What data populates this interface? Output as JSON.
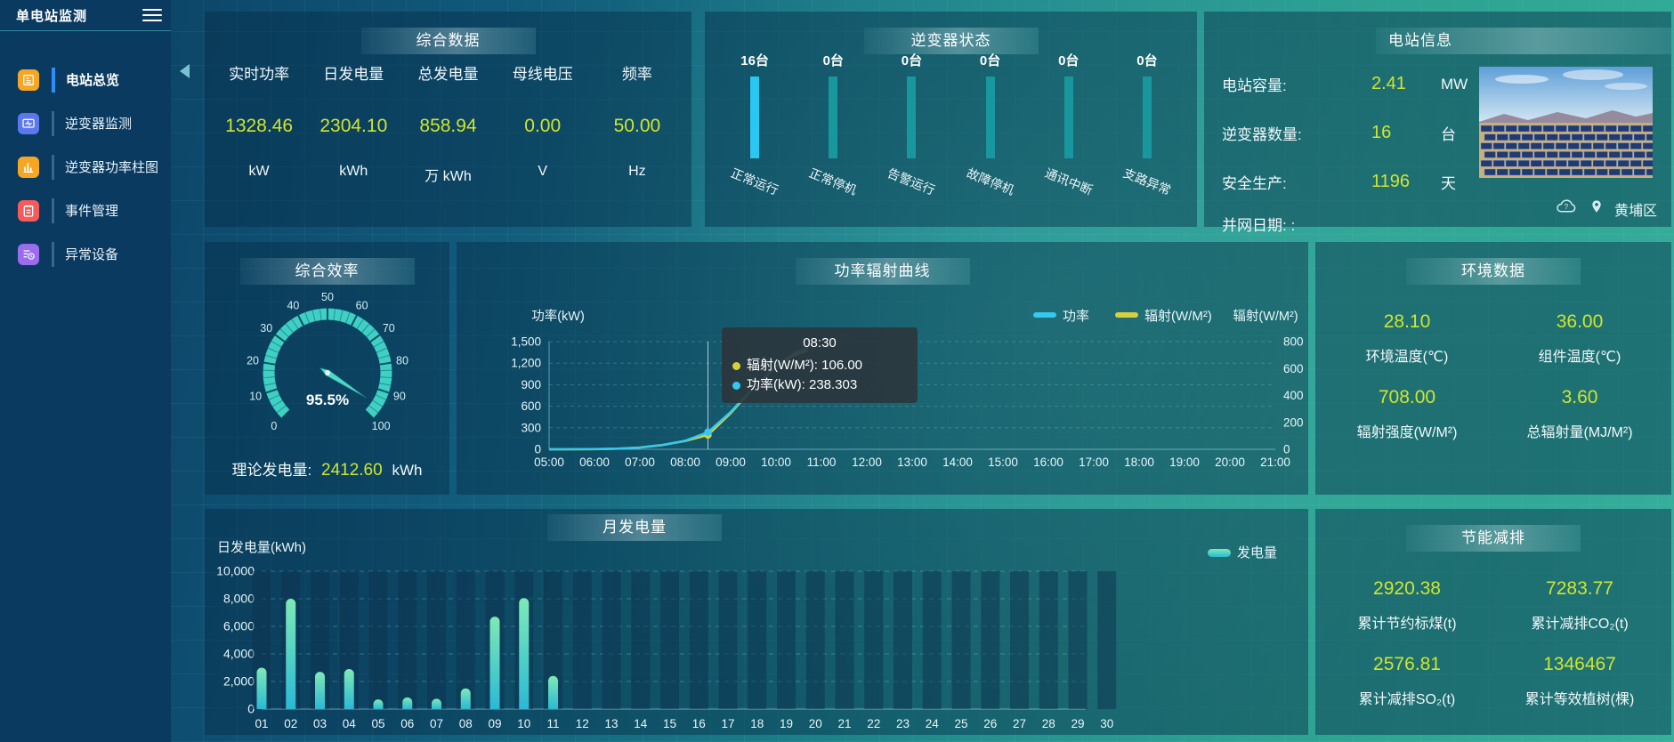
{
  "colors": {
    "accent_yellow": "#cfe52f",
    "bar_highlight": "#29c7f2",
    "bar_normal": "#18989c",
    "line_power": "#35c8f0",
    "line_radiation": "#d8cf3a",
    "month_bar_top": "#7fe9b6",
    "month_bar_bottom": "#2ab9d4",
    "menu_icon_colors": [
      "#f5a623",
      "#5b78ee",
      "#f5a623",
      "#f55b5b",
      "#9a6cf0"
    ]
  },
  "sidebar": {
    "title": "单电站监测",
    "items": [
      {
        "label": "电站总览",
        "icon": "station-overview-icon",
        "active": true
      },
      {
        "label": "逆变器监测",
        "icon": "inverter-monitor-icon",
        "active": false
      },
      {
        "label": "逆变器功率柱图",
        "icon": "inverter-bar-icon",
        "active": false
      },
      {
        "label": "事件管理",
        "icon": "event-manage-icon",
        "active": false
      },
      {
        "label": "异常设备",
        "icon": "abnormal-device-icon",
        "active": false
      }
    ]
  },
  "overview": {
    "title": "综合数据",
    "metrics": [
      {
        "label": "实时功率",
        "value": "1328.46",
        "unit": "kW"
      },
      {
        "label": "日发电量",
        "value": "2304.10",
        "unit": "kWh"
      },
      {
        "label": "总发电量",
        "value": "858.94",
        "unit": "万 kWh"
      },
      {
        "label": "母线电压",
        "value": "0.00",
        "unit": "V"
      },
      {
        "label": "频率",
        "value": "50.00",
        "unit": "Hz"
      }
    ]
  },
  "inverter_status": {
    "title": "逆变器状态",
    "bars": [
      {
        "count": "16台",
        "label": "正常运行",
        "highlight": true
      },
      {
        "count": "0台",
        "label": "正常停机",
        "highlight": false
      },
      {
        "count": "0台",
        "label": "告警运行",
        "highlight": false
      },
      {
        "count": "0台",
        "label": "故障停机",
        "highlight": false
      },
      {
        "count": "0台",
        "label": "通讯中断",
        "highlight": false
      },
      {
        "count": "0台",
        "label": "支路异常",
        "highlight": false
      }
    ]
  },
  "station_info": {
    "title": "电站信息",
    "rows": [
      {
        "label": "电站容量:",
        "value": "2.41",
        "unit": "MW"
      },
      {
        "label": "逆变器数量:",
        "value": "16",
        "unit": "台"
      },
      {
        "label": "安全生产:",
        "value": "1196",
        "unit": "天"
      },
      {
        "label": "并网日期: :",
        "value": "",
        "unit": ""
      }
    ],
    "location": "黄埔区"
  },
  "efficiency": {
    "title": "综合效率",
    "gauge": {
      "percent": 95.5,
      "display": "95.5%",
      "min": 0,
      "max": 100,
      "tick_labels": [
        "0",
        "10",
        "20",
        "30",
        "40",
        "50",
        "60",
        "70",
        "80",
        "90",
        "100"
      ]
    },
    "theory_label": "理论发电量:",
    "theory_value": "2412.60",
    "theory_unit": "kWh"
  },
  "power_curve": {
    "title": "功率辐射曲线",
    "tooltip": {
      "time": "08:30",
      "rows": [
        {
          "name": "辐射(W/M²)",
          "value": "106.00",
          "color": "#d8cf3a"
        },
        {
          "name": "功率(kW)",
          "value": "238.303",
          "color": "#35c8f0"
        }
      ]
    },
    "chart_data": {
      "type": "line",
      "x_labels": [
        "05:00",
        "06:00",
        "07:00",
        "08:00",
        "09:00",
        "10:00",
        "11:00",
        "12:00",
        "13:00",
        "14:00",
        "15:00",
        "16:00",
        "17:00",
        "18:00",
        "19:00",
        "20:00",
        "21:00"
      ],
      "x_range": [
        5,
        21
      ],
      "left_axis": {
        "label": "功率(kW)",
        "tick_labels": [
          "0",
          "300",
          "600",
          "900",
          "1,200",
          "1,500"
        ],
        "max": 1500
      },
      "right_axis": {
        "label": "辐射(W/M²)",
        "tick_labels": [
          "0",
          "200",
          "400",
          "600",
          "800"
        ],
        "max": 800
      },
      "legend": [
        "功率",
        "辐射(W/M²)"
      ],
      "hover_time": 8.5,
      "series": [
        {
          "name": "辐射(W/M²)",
          "axis": "right",
          "color": "#d8cf3a",
          "hover_value": 106,
          "points": [
            [
              5,
              0
            ],
            [
              5.5,
              0
            ],
            [
              6,
              1
            ],
            [
              6.5,
              4
            ],
            [
              7,
              13
            ],
            [
              7.5,
              32
            ],
            [
              8,
              62
            ],
            [
              8.5,
              106
            ],
            [
              9,
              268
            ],
            [
              9.5,
              455
            ],
            [
              10,
              615
            ],
            [
              10.4,
              700
            ],
            [
              10.7,
              735
            ]
          ]
        },
        {
          "name": "功率",
          "axis": "left",
          "color": "#35c8f0",
          "hover_value": 238.303,
          "points": [
            [
              5,
              0
            ],
            [
              5.5,
              1
            ],
            [
              6,
              3
            ],
            [
              6.5,
              9
            ],
            [
              7,
              24
            ],
            [
              7.5,
              58
            ],
            [
              8,
              120
            ],
            [
              8.5,
              238.303
            ],
            [
              9,
              520
            ],
            [
              9.5,
              860
            ],
            [
              10,
              1160
            ],
            [
              10.4,
              1340
            ],
            [
              10.7,
              1420
            ]
          ]
        }
      ]
    }
  },
  "environment": {
    "title": "环境数据",
    "cells": [
      {
        "value": "28.10",
        "label": "环境温度(℃)"
      },
      {
        "value": "36.00",
        "label": "组件温度(℃)"
      },
      {
        "value": "708.00",
        "label": "辐射强度(W/M²)"
      },
      {
        "value": "3.60",
        "label": "总辐射量(MJ/M²)"
      }
    ]
  },
  "monthly": {
    "title": "月发电量",
    "chart_data": {
      "type": "bar",
      "ylabel": "日发电量(kWh)",
      "ytick_labels": [
        "0",
        "2,000",
        "4,000",
        "6,000",
        "8,000",
        "10,000"
      ],
      "ymax": 10000,
      "legend": "发电量",
      "categories": [
        "01",
        "02",
        "03",
        "04",
        "05",
        "06",
        "07",
        "08",
        "09",
        "10",
        "11",
        "12",
        "13",
        "14",
        "15",
        "16",
        "17",
        "18",
        "19",
        "20",
        "21",
        "22",
        "23",
        "24",
        "25",
        "26",
        "27",
        "28",
        "29",
        "30"
      ],
      "values": [
        3000,
        8000,
        2700,
        2900,
        700,
        850,
        750,
        1500,
        6700,
        8050,
        2400,
        0,
        0,
        0,
        0,
        0,
        0,
        0,
        0,
        0,
        0,
        0,
        0,
        0,
        0,
        0,
        0,
        0,
        0,
        0
      ]
    }
  },
  "saving": {
    "title": "节能减排",
    "cells": [
      {
        "value": "2920.38",
        "label": "累计节约标煤(t)"
      },
      {
        "value": "7283.77",
        "label": "累计减排CO₂(t)"
      },
      {
        "value": "2576.81",
        "label": "累计减排SO₂(t)"
      },
      {
        "value": "1346467",
        "label": "累计等效植树(棵)"
      }
    ]
  }
}
